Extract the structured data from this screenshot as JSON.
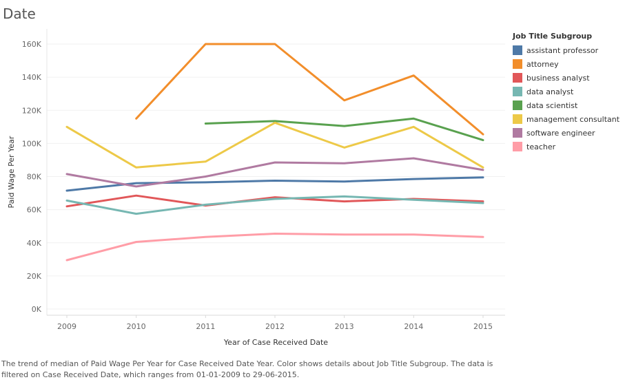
{
  "title": "Date",
  "caption": "The trend of median of Paid Wage Per Year for Case Received Date Year.  Color shows details about Job Title Subgroup. The data is filtered on Case Received Date, which ranges from 01-01-2009 to 29-06-2015.",
  "chart_data": {
    "type": "line",
    "xlabel": "Year of Case Received Date",
    "ylabel": "Paid Wage Per Year",
    "x": [
      2009,
      2010,
      2011,
      2012,
      2013,
      2014,
      2015
    ],
    "ylim": [
      0,
      170000
    ],
    "yticks": [
      0,
      20000,
      40000,
      60000,
      80000,
      100000,
      120000,
      140000,
      160000
    ],
    "ytick_labels": [
      "0K",
      "20K",
      "40K",
      "60K",
      "80K",
      "100K",
      "120K",
      "140K",
      "160K"
    ],
    "grid": "horizontal",
    "legend": {
      "title": "Job Title Subgroup",
      "placement": "right"
    },
    "series": [
      {
        "name": "assistant professor",
        "color": "#4e79a7",
        "values": [
          71500,
          76000,
          76500,
          77500,
          77000,
          78500,
          79500
        ]
      },
      {
        "name": "attorney",
        "color": "#f28e2b",
        "values": [
          null,
          115000,
          160000,
          160000,
          126000,
          141000,
          105500
        ]
      },
      {
        "name": "business analyst",
        "color": "#e15759",
        "values": [
          62000,
          68500,
          62500,
          67500,
          65000,
          66500,
          65000
        ]
      },
      {
        "name": "data analyst",
        "color": "#76b7b2",
        "values": [
          65500,
          57500,
          63000,
          66500,
          68000,
          66000,
          64000
        ]
      },
      {
        "name": "data scientist",
        "color": "#59a14f",
        "values": [
          null,
          null,
          112000,
          113500,
          110500,
          115000,
          102000
        ]
      },
      {
        "name": "management consultant",
        "color": "#edc948",
        "values": [
          110000,
          85500,
          89000,
          112500,
          97500,
          110000,
          85500
        ]
      },
      {
        "name": "software engineer",
        "color": "#b07aa1",
        "values": [
          81500,
          74000,
          80000,
          88500,
          88000,
          91000,
          84000
        ]
      },
      {
        "name": "teacher",
        "color": "#ff9da7",
        "values": [
          29500,
          40500,
          43500,
          45500,
          45000,
          45000,
          43500
        ]
      }
    ]
  }
}
